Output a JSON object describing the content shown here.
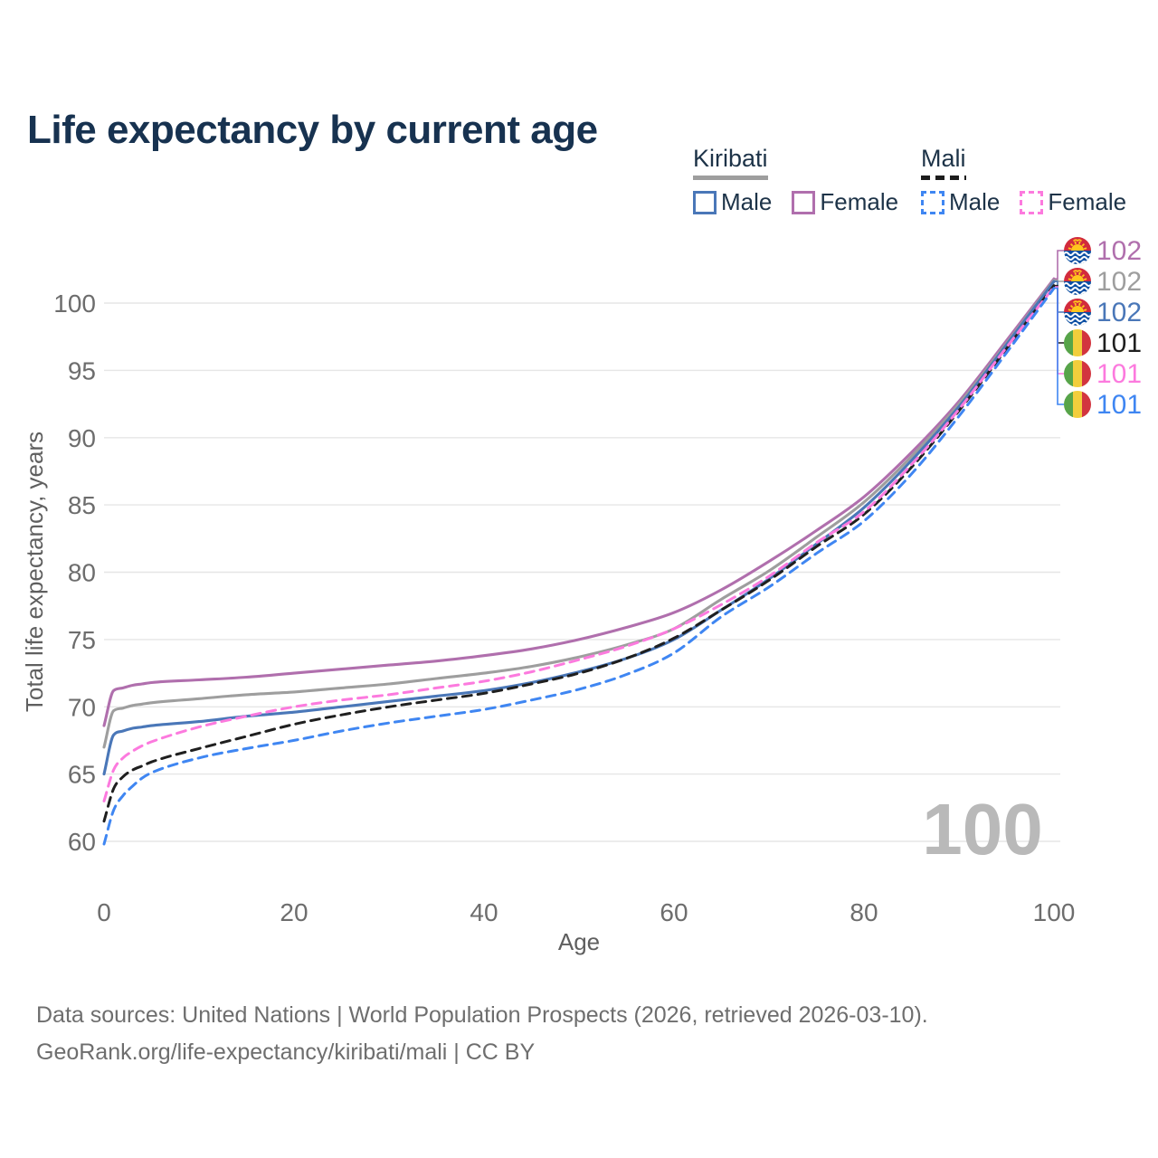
{
  "title": "Life expectancy by current age",
  "watermark": "100",
  "legend": {
    "groups": [
      {
        "label": "Kiribati",
        "line_style": "solid",
        "line_color": "#9e9e9e",
        "items": [
          {
            "label": "Male",
            "color": "#4a77b8"
          },
          {
            "label": "Female",
            "color": "#b06fad"
          }
        ]
      },
      {
        "label": "Mali",
        "line_style": "dashed",
        "line_color": "#1c1c1c",
        "items": [
          {
            "label": "Male",
            "color": "#3f86f2"
          },
          {
            "label": "Female",
            "color": "#fc7ade"
          }
        ]
      }
    ]
  },
  "footer": {
    "line1": "Data sources: United Nations | World Population Prospects (2026, retrieved 2026-03-10).",
    "line2": "GeoRank.org/life-expectancy/kiribati/mali | CC BY"
  },
  "chart_data": {
    "type": "line",
    "title": "Life expectancy by current age",
    "xlabel": "Age",
    "ylabel": "Total life expectancy, years",
    "xlim": [
      0,
      100
    ],
    "ylim": [
      58,
      103.5
    ],
    "x_ticks": [
      0,
      20,
      40,
      60,
      80,
      100
    ],
    "y_ticks": [
      60,
      65,
      70,
      75,
      80,
      85,
      90,
      95,
      100
    ],
    "grid": "horizontal",
    "legend_position": "top-right",
    "ages": [
      0,
      1,
      2,
      3,
      4,
      5,
      10,
      15,
      20,
      25,
      30,
      35,
      40,
      45,
      50,
      55,
      60,
      65,
      70,
      75,
      80,
      85,
      90,
      95,
      100
    ],
    "series": [
      {
        "name": "Kiribati Female",
        "country": "Kiribati",
        "sex": "Female",
        "style": "solid",
        "color": "#b06fad",
        "flag": "kiribati",
        "end_label": "102",
        "values": [
          68.6,
          71.2,
          71.4,
          71.6,
          71.7,
          71.8,
          72.0,
          72.2,
          72.5,
          72.8,
          73.1,
          73.4,
          73.8,
          74.3,
          75.0,
          75.9,
          77.0,
          78.7,
          80.8,
          83.1,
          85.6,
          88.9,
          92.7,
          97.2,
          101.8
        ]
      },
      {
        "name": "Kiribati Total",
        "country": "Kiribati",
        "sex": "Both",
        "style": "solid",
        "color": "#9e9e9e",
        "flag": "kiribati",
        "end_label": "102",
        "values": [
          67.0,
          69.7,
          69.9,
          70.1,
          70.2,
          70.3,
          70.6,
          70.9,
          71.1,
          71.4,
          71.7,
          72.1,
          72.5,
          73.0,
          73.7,
          74.6,
          75.8,
          78.0,
          80.1,
          82.6,
          85.2,
          88.6,
          92.5,
          97.0,
          101.7
        ]
      },
      {
        "name": "Kiribati Male",
        "country": "Kiribati",
        "sex": "Male",
        "style": "solid",
        "color": "#4a77b8",
        "flag": "kiribati",
        "end_label": "102",
        "values": [
          65.0,
          67.9,
          68.2,
          68.4,
          68.5,
          68.6,
          68.9,
          69.3,
          69.6,
          70.0,
          70.4,
          70.8,
          71.2,
          71.8,
          72.6,
          73.6,
          75.0,
          77.2,
          79.5,
          82.1,
          84.8,
          88.3,
          92.3,
          96.9,
          101.6
        ]
      },
      {
        "name": "Mali Total",
        "country": "Mali",
        "sex": "Both",
        "style": "dashed",
        "color": "#1f1f1f",
        "flag": "mali",
        "end_label": "101",
        "values": [
          61.5,
          63.9,
          64.8,
          65.3,
          65.6,
          65.9,
          66.9,
          67.8,
          68.7,
          69.4,
          70.0,
          70.5,
          71.0,
          71.7,
          72.5,
          73.6,
          75.1,
          77.2,
          79.4,
          81.9,
          84.3,
          87.8,
          92.0,
          96.6,
          101.3
        ]
      },
      {
        "name": "Mali Female",
        "country": "Mali",
        "sex": "Female",
        "style": "dashed",
        "color": "#fc7ade",
        "flag": "mali",
        "end_label": "101",
        "values": [
          63.0,
          65.3,
          66.2,
          66.7,
          67.1,
          67.4,
          68.5,
          69.3,
          70.0,
          70.5,
          70.9,
          71.4,
          71.9,
          72.6,
          73.5,
          74.5,
          75.8,
          77.6,
          79.7,
          82.2,
          84.5,
          88.0,
          92.1,
          96.7,
          101.2
        ]
      },
      {
        "name": "Mali Male",
        "country": "Mali",
        "sex": "Male",
        "style": "dashed",
        "color": "#3f86f2",
        "flag": "mali",
        "end_label": "101",
        "values": [
          59.8,
          62.3,
          63.4,
          64.1,
          64.7,
          65.1,
          66.2,
          66.9,
          67.5,
          68.2,
          68.8,
          69.3,
          69.8,
          70.5,
          71.3,
          72.4,
          74.0,
          76.7,
          78.9,
          81.4,
          83.8,
          87.3,
          91.6,
          96.3,
          101.1
        ]
      }
    ]
  }
}
